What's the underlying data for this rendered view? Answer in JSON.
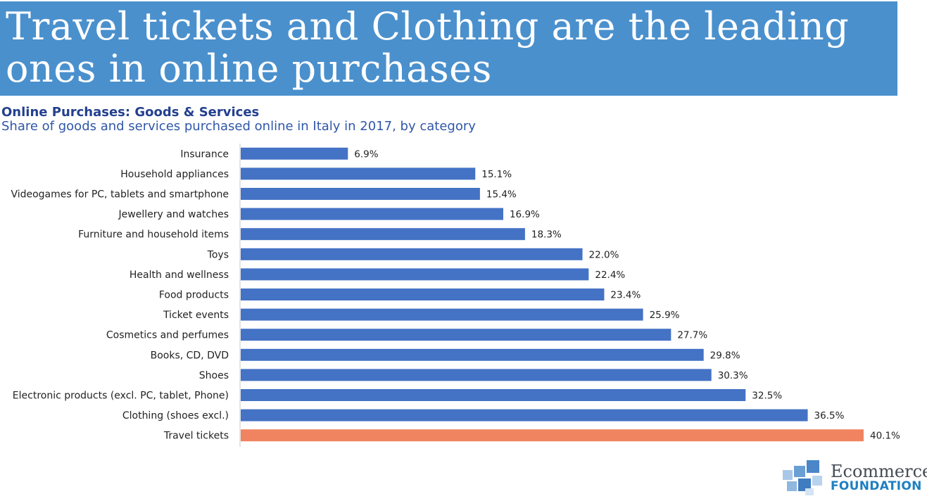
{
  "header": {
    "title": "Travel tickets and Clothing are the leading ones in online purchases"
  },
  "chart_data": {
    "type": "bar",
    "orientation": "horizontal",
    "title": "Online Purchases: Goods & Services",
    "subtitle": "Share of goods and services purchased online in Italy in 2017, by category",
    "categories": [
      "Insurance",
      "Household appliances",
      "Videogames for PC, tablets and smartphone",
      "Jewellery and watches",
      "Furniture and household items",
      "Toys",
      "Health and wellness",
      "Food products",
      "Ticket events",
      "Cosmetics and perfumes",
      "Books, CD, DVD",
      "Shoes",
      "Electronic products (excl. PC, tablet, Phone)",
      "Clothing (shoes excl.)",
      "Travel tickets"
    ],
    "values": [
      6.9,
      15.1,
      15.4,
      16.9,
      18.3,
      22.0,
      22.4,
      23.4,
      25.9,
      27.7,
      29.8,
      30.3,
      32.5,
      36.5,
      40.1
    ],
    "value_labels": [
      "6.9%",
      "15.1%",
      "15.4%",
      "16.9%",
      "18.3%",
      "22.0%",
      "22.4%",
      "23.4%",
      "25.9%",
      "27.7%",
      "29.8%",
      "30.3%",
      "32.5%",
      "36.5%",
      "40.1%"
    ],
    "unit": "%",
    "xlim": [
      0,
      40.1
    ],
    "grid": false,
    "colors": {
      "bar": "#4472c4",
      "highlight": "#f08460",
      "highlight_index": 14
    }
  },
  "logo": {
    "line1": "Ecommerce",
    "line2": "FOUNDATION",
    "colors": {
      "mark": "#6a9fd4",
      "text_dark": "#444b54",
      "text_blue": "#1e7fc1"
    }
  }
}
